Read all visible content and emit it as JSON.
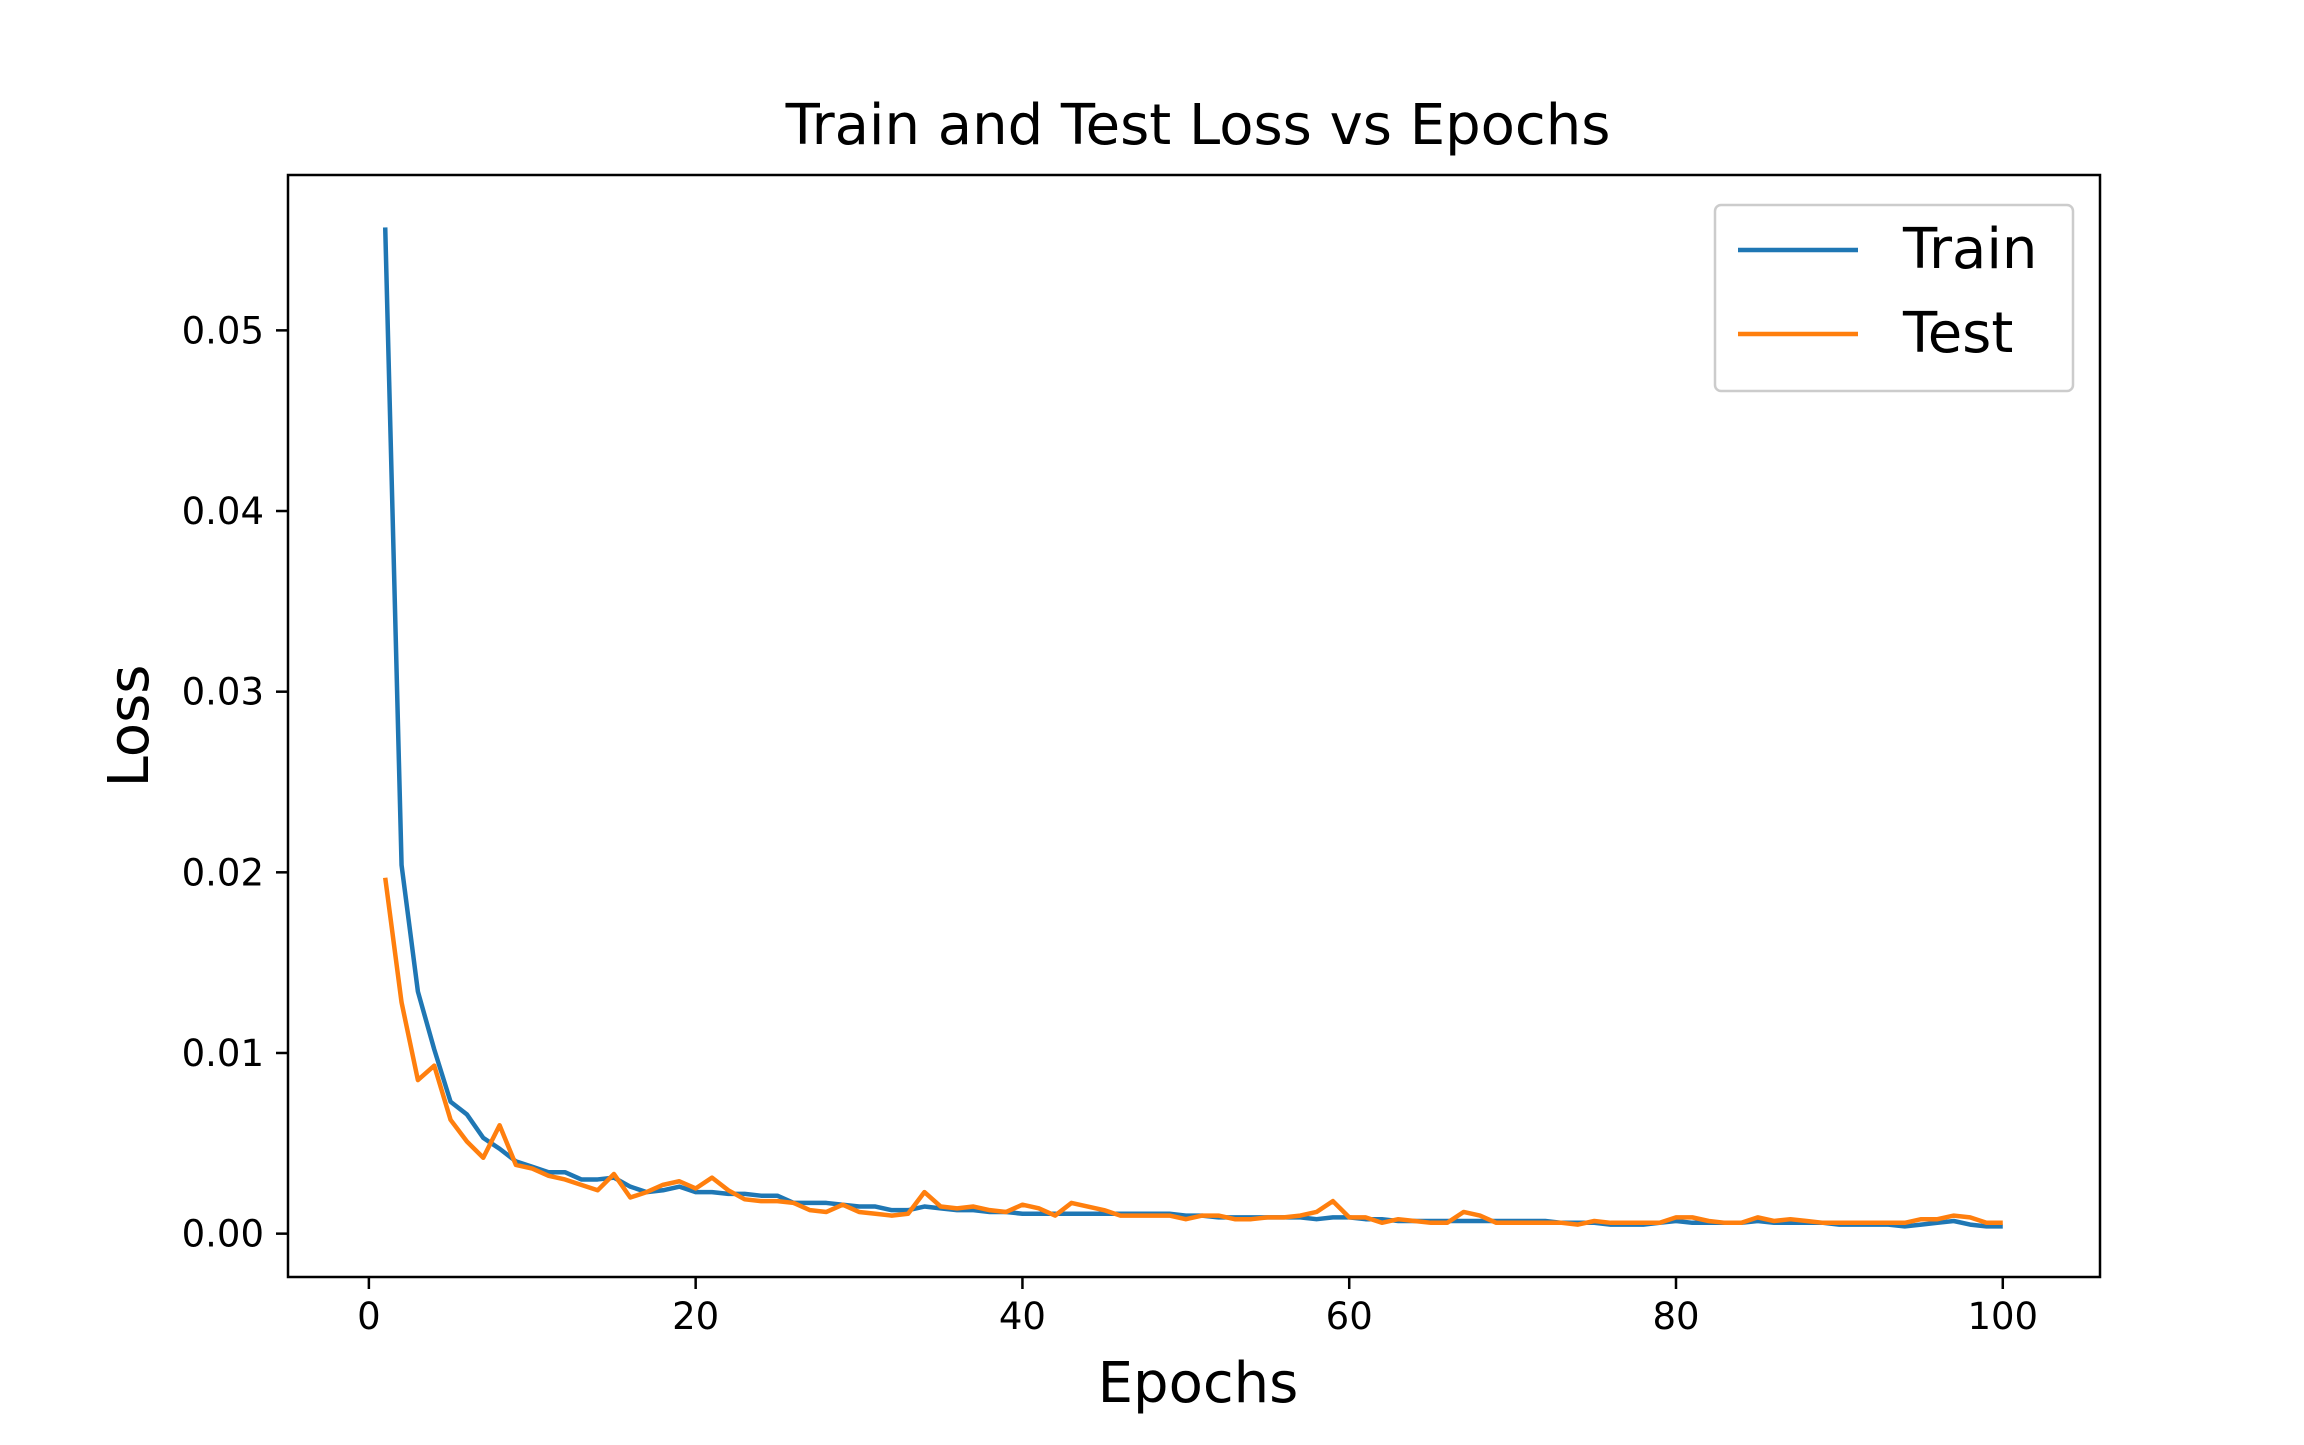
{
  "chart_data": {
    "type": "line",
    "title": "Train and Test Loss vs Epochs",
    "xlabel": "Epochs",
    "ylabel": "Loss",
    "xlim": [
      -4.95,
      105.95
    ],
    "ylim": [
      -0.0024,
      0.0586
    ],
    "xticks": [
      0,
      20,
      40,
      60,
      80,
      100
    ],
    "xtick_labels": [
      "0",
      "20",
      "40",
      "60",
      "80",
      "100"
    ],
    "yticks": [
      0.0,
      0.01,
      0.02,
      0.03,
      0.04,
      0.05
    ],
    "ytick_labels": [
      "0.00",
      "0.01",
      "0.02",
      "0.03",
      "0.04",
      "0.05"
    ],
    "grid": false,
    "legend_position": "top-right",
    "series": [
      {
        "name": "Train",
        "color": "#1f77b4",
        "x": [
          1,
          2,
          3,
          4,
          5,
          6,
          7,
          8,
          9,
          10,
          11,
          12,
          13,
          14,
          15,
          16,
          17,
          18,
          19,
          20,
          21,
          22,
          23,
          24,
          25,
          26,
          27,
          28,
          29,
          30,
          31,
          32,
          33,
          34,
          35,
          36,
          37,
          38,
          39,
          40,
          41,
          42,
          43,
          44,
          45,
          46,
          47,
          48,
          49,
          50,
          51,
          52,
          53,
          54,
          55,
          56,
          57,
          58,
          59,
          60,
          61,
          62,
          63,
          64,
          65,
          66,
          67,
          68,
          69,
          70,
          71,
          72,
          73,
          74,
          75,
          76,
          77,
          78,
          79,
          80,
          81,
          82,
          83,
          84,
          85,
          86,
          87,
          88,
          89,
          90,
          91,
          92,
          93,
          94,
          95,
          96,
          97,
          98,
          99,
          100
        ],
        "values": [
          0.0557,
          0.0204,
          0.0134,
          0.0102,
          0.0073,
          0.0066,
          0.0053,
          0.0047,
          0.004,
          0.0037,
          0.0034,
          0.0034,
          0.003,
          0.003,
          0.0031,
          0.0026,
          0.0023,
          0.0024,
          0.0026,
          0.0023,
          0.0023,
          0.0022,
          0.0022,
          0.0021,
          0.0021,
          0.0017,
          0.0017,
          0.0017,
          0.0016,
          0.0015,
          0.0015,
          0.0013,
          0.0013,
          0.0015,
          0.0014,
          0.0013,
          0.0013,
          0.0012,
          0.0012,
          0.0011,
          0.0011,
          0.0011,
          0.0011,
          0.0011,
          0.0011,
          0.0011,
          0.0011,
          0.0011,
          0.0011,
          0.001,
          0.001,
          0.0009,
          0.0009,
          0.0009,
          0.0009,
          0.0009,
          0.0009,
          0.0008,
          0.0009,
          0.0009,
          0.0008,
          0.0008,
          0.0007,
          0.0007,
          0.0007,
          0.0007,
          0.0007,
          0.0007,
          0.0007,
          0.0007,
          0.0007,
          0.0007,
          0.0006,
          0.0006,
          0.0006,
          0.0005,
          0.0005,
          0.0005,
          0.0006,
          0.0007,
          0.0006,
          0.0006,
          0.0006,
          0.0006,
          0.0007,
          0.0006,
          0.0006,
          0.0006,
          0.0006,
          0.0005,
          0.0005,
          0.0005,
          0.0005,
          0.0004,
          0.0005,
          0.0006,
          0.0007,
          0.0005,
          0.0004,
          0.0004
        ]
      },
      {
        "name": "Test",
        "color": "#ff7f0e",
        "x": [
          1,
          2,
          3,
          4,
          5,
          6,
          7,
          8,
          9,
          10,
          11,
          12,
          13,
          14,
          15,
          16,
          17,
          18,
          19,
          20,
          21,
          22,
          23,
          24,
          25,
          26,
          27,
          28,
          29,
          30,
          31,
          32,
          33,
          34,
          35,
          36,
          37,
          38,
          39,
          40,
          41,
          42,
          43,
          44,
          45,
          46,
          47,
          48,
          49,
          50,
          51,
          52,
          53,
          54,
          55,
          56,
          57,
          58,
          59,
          60,
          61,
          62,
          63,
          64,
          65,
          66,
          67,
          68,
          69,
          70,
          71,
          72,
          73,
          74,
          75,
          76,
          77,
          78,
          79,
          80,
          81,
          82,
          83,
          84,
          85,
          86,
          87,
          88,
          89,
          90,
          91,
          92,
          93,
          94,
          95,
          96,
          97,
          98,
          99,
          100
        ],
        "values": [
          0.0197,
          0.0128,
          0.0085,
          0.0093,
          0.0063,
          0.0051,
          0.0042,
          0.006,
          0.0038,
          0.0036,
          0.0032,
          0.003,
          0.0027,
          0.0024,
          0.0033,
          0.002,
          0.0023,
          0.0027,
          0.0029,
          0.0025,
          0.0031,
          0.0024,
          0.0019,
          0.0018,
          0.0018,
          0.0017,
          0.0013,
          0.0012,
          0.0016,
          0.0012,
          0.0011,
          0.001,
          0.0011,
          0.0023,
          0.0015,
          0.0014,
          0.0015,
          0.0013,
          0.0012,
          0.0016,
          0.0014,
          0.001,
          0.0017,
          0.0015,
          0.0013,
          0.001,
          0.001,
          0.001,
          0.001,
          0.0008,
          0.001,
          0.001,
          0.0008,
          0.0008,
          0.0009,
          0.0009,
          0.001,
          0.0012,
          0.0018,
          0.0009,
          0.0009,
          0.0006,
          0.0008,
          0.0007,
          0.0006,
          0.0006,
          0.0012,
          0.001,
          0.0006,
          0.0006,
          0.0006,
          0.0006,
          0.0006,
          0.0005,
          0.0007,
          0.0006,
          0.0006,
          0.0006,
          0.0006,
          0.0009,
          0.0009,
          0.0007,
          0.0006,
          0.0006,
          0.0009,
          0.0007,
          0.0008,
          0.0007,
          0.0006,
          0.0006,
          0.0006,
          0.0006,
          0.0006,
          0.0006,
          0.0008,
          0.0008,
          0.001,
          0.0009,
          0.0006,
          0.0006
        ]
      }
    ]
  }
}
